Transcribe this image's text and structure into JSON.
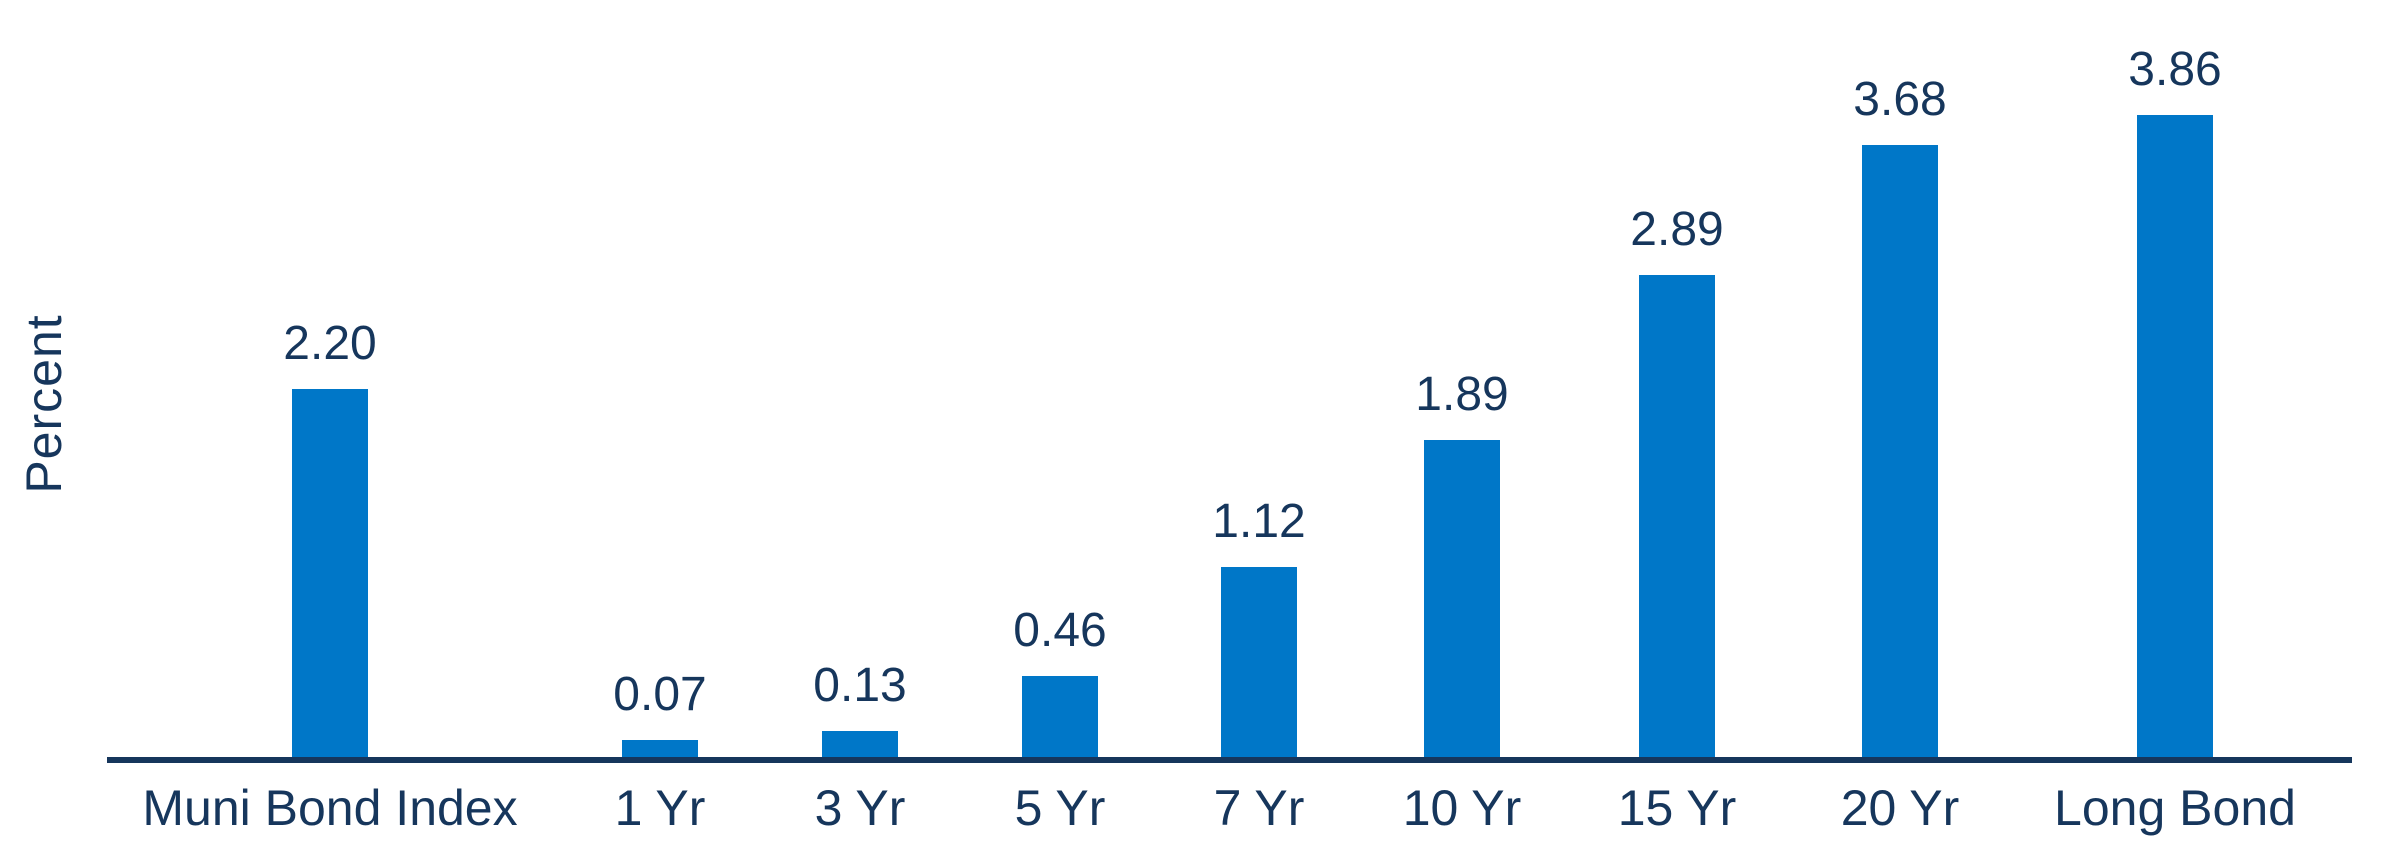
{
  "chart_data": {
    "type": "bar",
    "title": "",
    "xlabel": "",
    "ylabel": "Percent",
    "categories": [
      "Muni Bond Index",
      "1 Yr",
      "3 Yr",
      "5 Yr",
      "7 Yr",
      "10 Yr",
      "15 Yr",
      "20 Yr",
      "Long Bond"
    ],
    "values": [
      2.2,
      0.07,
      0.13,
      0.46,
      1.12,
      1.89,
      2.89,
      3.68,
      3.86
    ],
    "value_labels": [
      "2.20",
      "0.07",
      "0.13",
      "0.46",
      "1.12",
      "1.89",
      "2.89",
      "3.68",
      "3.86"
    ],
    "ylim": [
      0,
      4
    ],
    "grid": false,
    "legend": "none",
    "axis_ticks": "none",
    "colors": {
      "bar": "#0077C8",
      "axis": "#16365C",
      "text": "#16365C",
      "background": "#FFFFFF"
    }
  }
}
